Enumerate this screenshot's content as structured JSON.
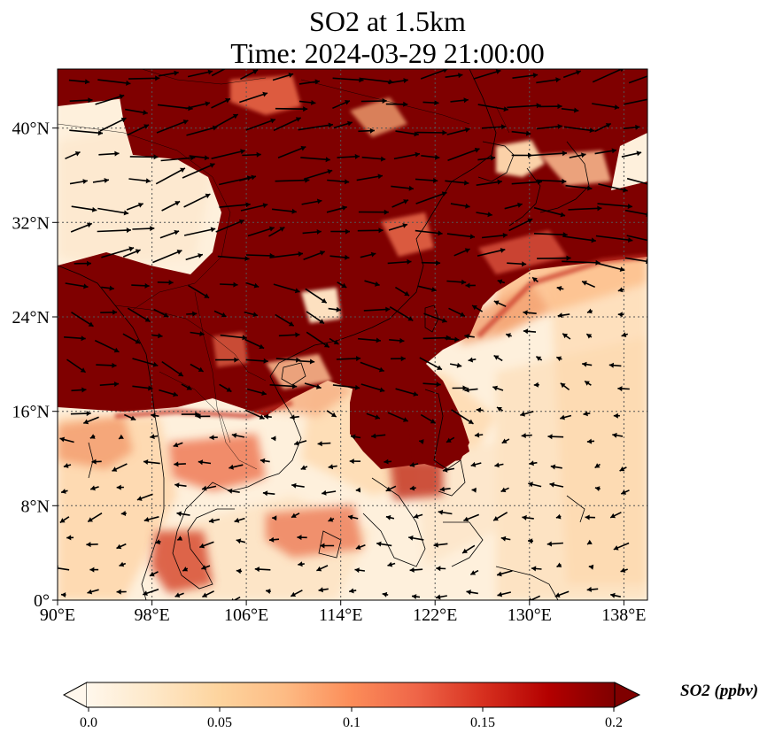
{
  "title": {
    "line1": "SO2 at 1.5km",
    "line2": "Time: 2024-03-29 21:00:00"
  },
  "map": {
    "lon_range": [
      90,
      140
    ],
    "lat_range": [
      0,
      45
    ],
    "xticks": [
      {
        "value": 90,
        "label": "90°E"
      },
      {
        "value": 98,
        "label": "98°E"
      },
      {
        "value": 106,
        "label": "106°E"
      },
      {
        "value": 114,
        "label": "114°E"
      },
      {
        "value": 122,
        "label": "122°E"
      },
      {
        "value": 130,
        "label": "130°E"
      },
      {
        "value": 138,
        "label": "138°E"
      }
    ],
    "yticks": [
      {
        "value": 0,
        "label": "0°"
      },
      {
        "value": 8,
        "label": "8°N"
      },
      {
        "value": 16,
        "label": "16°N"
      },
      {
        "value": 24,
        "label": "24°N"
      },
      {
        "value": 32,
        "label": "32°N"
      },
      {
        "value": 40,
        "label": "40°N"
      }
    ],
    "gridlines": true,
    "field": "SO2 concentration",
    "vectors": "wind"
  },
  "colorbar": {
    "label": "SO2 (ppbv)",
    "range": [
      0.0,
      0.2
    ],
    "extend": "both",
    "ticks": [
      {
        "value": 0.0,
        "label": "0.0"
      },
      {
        "value": 0.05,
        "label": "0.05"
      },
      {
        "value": 0.1,
        "label": "0.1"
      },
      {
        "value": 0.15,
        "label": "0.15"
      },
      {
        "value": 0.2,
        "label": "0.2"
      }
    ],
    "colormap": [
      "#fff7ec",
      "#fee8c8",
      "#fdd49e",
      "#fdbb84",
      "#fc8d59",
      "#ef6548",
      "#d7301f",
      "#b30000",
      "#7f0000"
    ]
  },
  "colors": {
    "high": "#7f0000",
    "low": "#fff7ec",
    "arrow": "#000000",
    "coast": "#000000"
  }
}
